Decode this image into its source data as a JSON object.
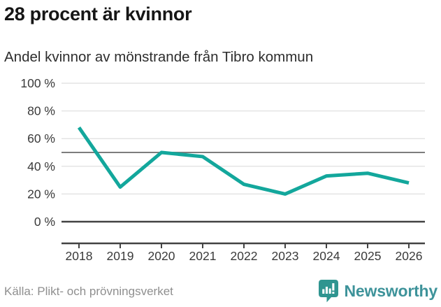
{
  "header": {
    "title": "28 procent är kvinnor",
    "subtitle": "Andel kvinnor av mönstrande från Tibro kommun"
  },
  "chart_data": {
    "type": "line",
    "title": "28 procent är kvinnor",
    "subtitle": "Andel kvinnor av mönstrande från Tibro kommun",
    "categories": [
      "2018",
      "2019",
      "2020",
      "2021",
      "2022",
      "2023",
      "2024",
      "2025",
      "2026"
    ],
    "series": [
      {
        "name": "Andel kvinnor av mönstrande",
        "values": [
          68,
          25,
          50,
          47,
          27,
          20,
          33,
          35,
          28
        ]
      }
    ],
    "ylim": [
      0,
      100
    ],
    "yticks": [
      0,
      20,
      40,
      60,
      80,
      100
    ],
    "ytick_labels": [
      "0 %",
      "20 %",
      "40 %",
      "60 %",
      "80 %",
      "100 %"
    ],
    "reference_line": 50,
    "grid": true,
    "legend": "none",
    "colors": {
      "line": "#13a79c",
      "grid": "#e4e4e4",
      "reference": "#7d7d7d",
      "axis": "#424242",
      "tick_text": "#3a3a3a"
    }
  },
  "footer": {
    "source": "Källa: Plikt- och prövningsverket",
    "brand": "Newsworthy",
    "brand_color": "#3e939a",
    "logo_color": "#2f9590"
  }
}
